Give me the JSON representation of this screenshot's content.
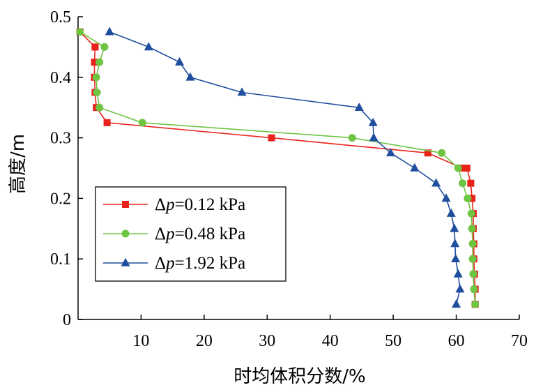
{
  "chart_data": {
    "type": "line",
    "title": "",
    "xlabel": "时均体积分数/%",
    "ylabel": "高度/m",
    "xlim": [
      0,
      70
    ],
    "ylim": [
      0,
      0.5
    ],
    "xticks": [
      "10",
      "20",
      "30",
      "40",
      "50",
      "60",
      "70"
    ],
    "yticks": [
      "0",
      "0.1",
      "0.2",
      "0.3",
      "0.4",
      "0.5"
    ],
    "grid": false,
    "legend_position": "bottom-left",
    "series": [
      {
        "name": "Δp=0.12 kPa",
        "name_parts": {
          "prefix": "Δ",
          "var": "p",
          "rest": "=0.12 kPa"
        },
        "color": "#e8231b",
        "marker": "square",
        "line": "solid",
        "x": [
          63.0,
          63.0,
          62.9,
          62.8,
          62.8,
          62.7,
          62.7,
          62.5,
          62.3,
          61.7,
          60.9,
          55.5,
          30.7,
          4.6,
          2.9,
          2.7,
          2.6,
          2.6,
          2.7,
          2.7,
          0.3
        ],
        "y": [
          0.025,
          0.05,
          0.075,
          0.1,
          0.125,
          0.15,
          0.175,
          0.2,
          0.225,
          0.25,
          0.25,
          0.275,
          0.3,
          0.325,
          0.35,
          0.375,
          0.4,
          0.425,
          0.45,
          0.45,
          0.475
        ]
      },
      {
        "name": "Δp=0.48 kPa",
        "name_parts": {
          "prefix": "Δ",
          "var": "p",
          "rest": "=0.48 kPa"
        },
        "color": "#6ec542",
        "marker": "circle",
        "line": "solid",
        "x": [
          63.0,
          62.8,
          62.7,
          62.6,
          62.6,
          62.5,
          62.4,
          61.8,
          61.0,
          60.3,
          57.7,
          43.5,
          10.2,
          3.4,
          3.0,
          2.9,
          3.4,
          4.2,
          0.3
        ],
        "y": [
          0.025,
          0.05,
          0.075,
          0.1,
          0.125,
          0.15,
          0.175,
          0.2,
          0.225,
          0.25,
          0.275,
          0.3,
          0.325,
          0.35,
          0.375,
          0.4,
          0.425,
          0.45,
          0.475
        ]
      },
      {
        "name": "Δp=1.92 kPa",
        "name_parts": {
          "prefix": "Δ",
          "var": "p",
          "rest": "=1.92 kPa"
        },
        "color": "#1f4e9e",
        "marker": "triangle",
        "line": "solid",
        "x": [
          60.0,
          60.6,
          60.3,
          59.9,
          59.8,
          59.7,
          59.2,
          58.4,
          56.8,
          53.4,
          49.6,
          46.9,
          46.8,
          44.6,
          26.0,
          17.8,
          16.1,
          11.2,
          5.0
        ],
        "y": [
          0.025,
          0.05,
          0.075,
          0.1,
          0.125,
          0.15,
          0.175,
          0.2,
          0.225,
          0.25,
          0.275,
          0.3,
          0.325,
          0.35,
          0.375,
          0.4,
          0.425,
          0.45,
          0.475
        ]
      }
    ]
  }
}
